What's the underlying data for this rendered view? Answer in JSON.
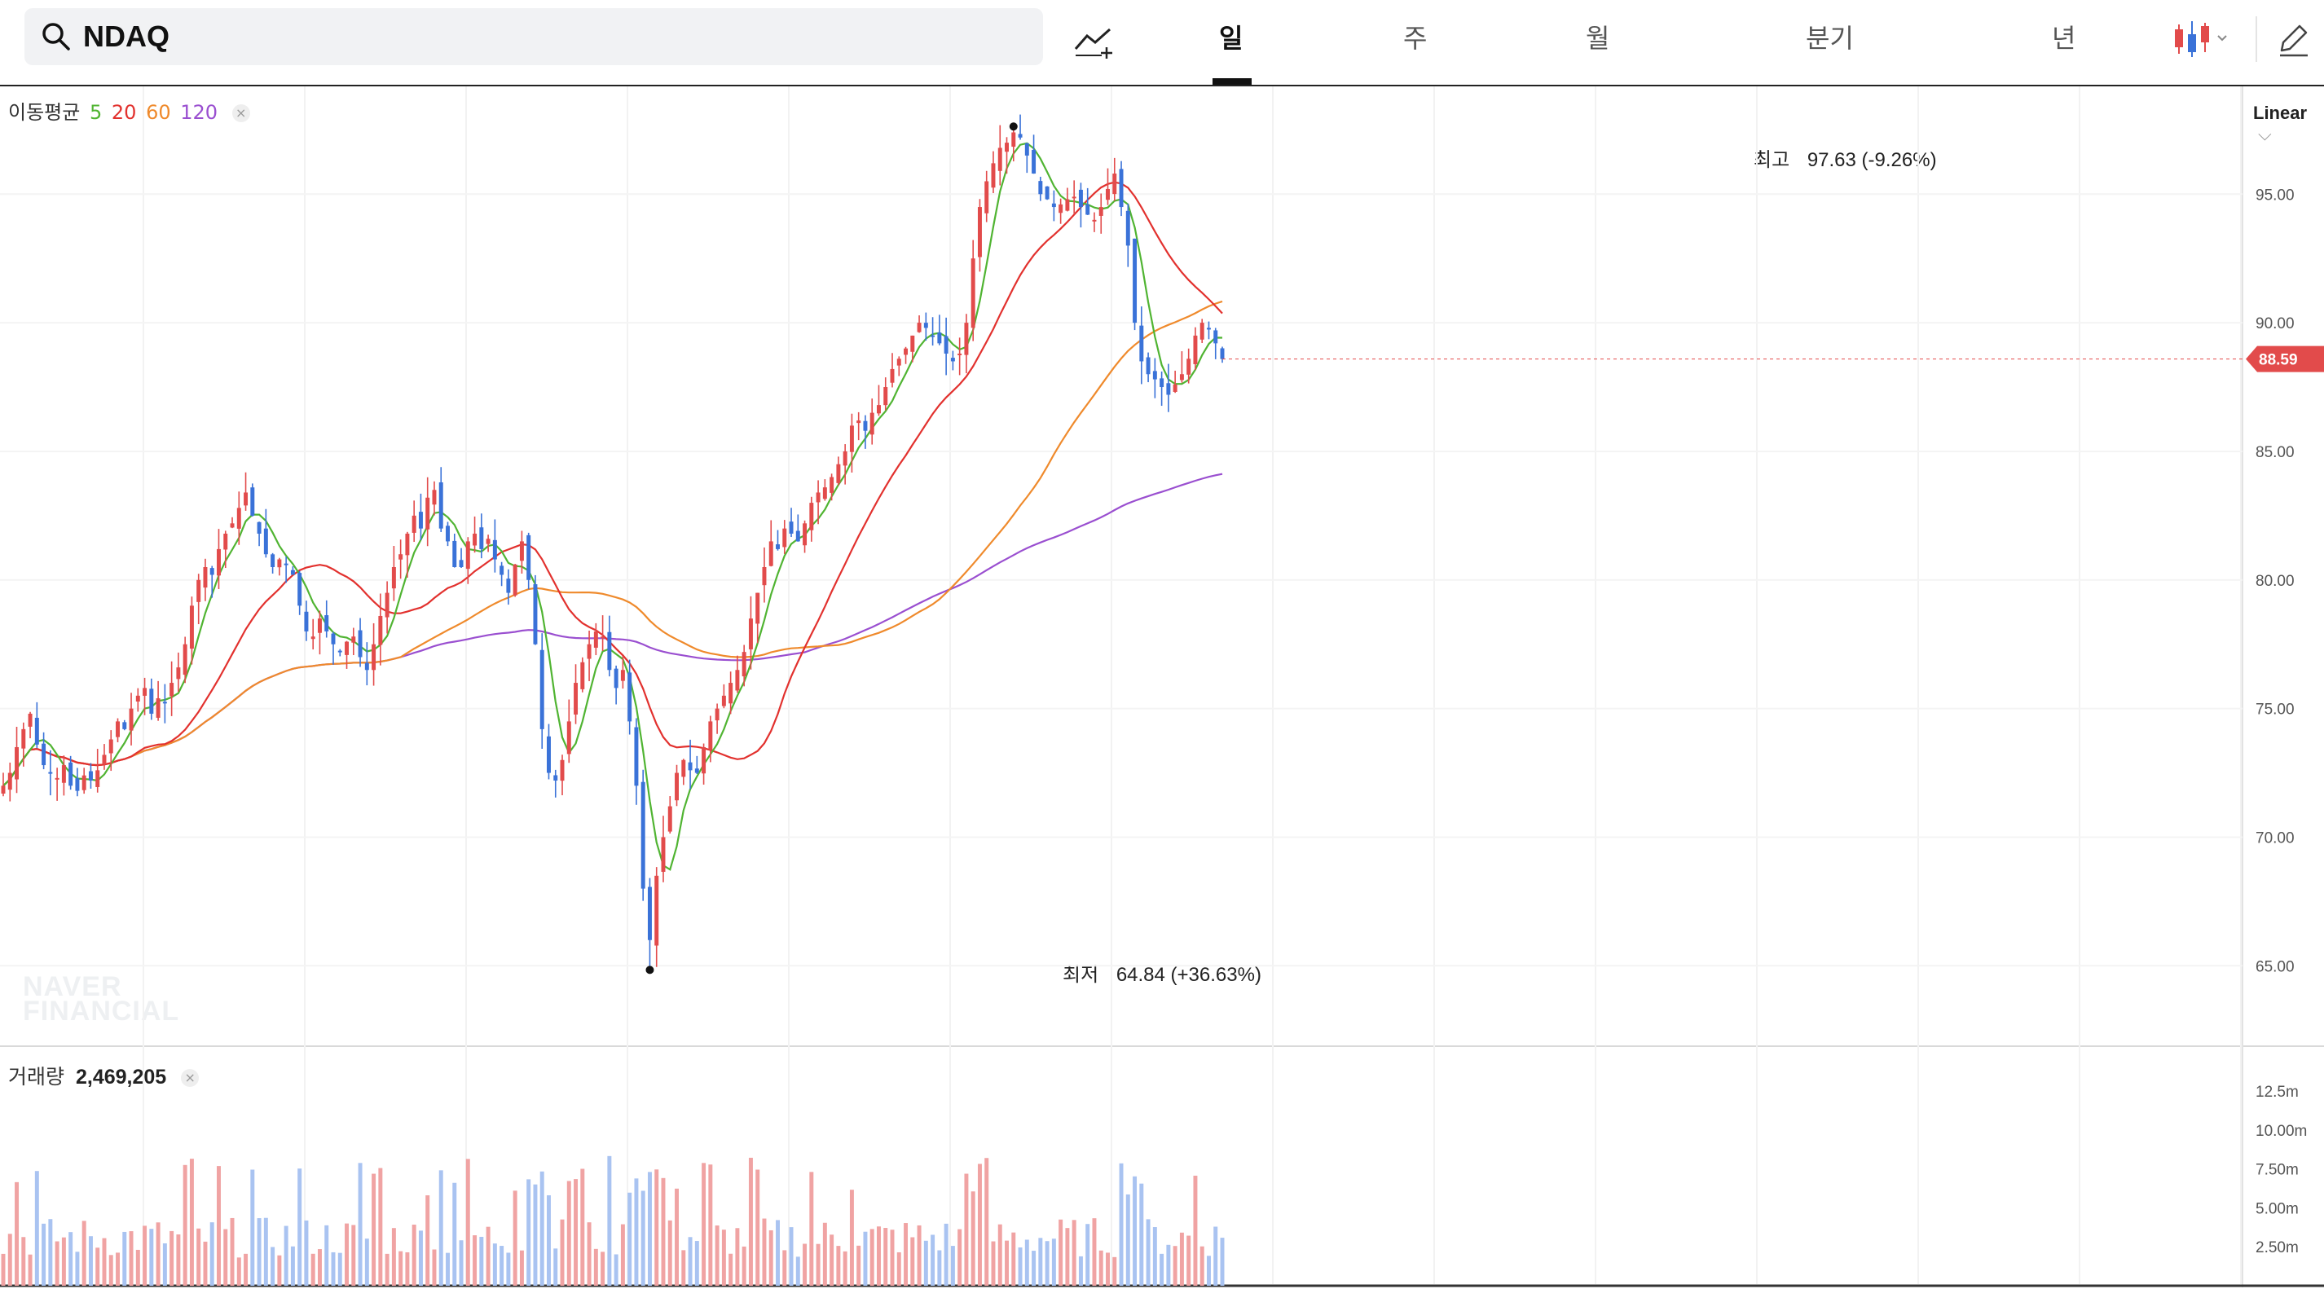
{
  "search": {
    "value": "NDAQ"
  },
  "toolbar": {
    "draw_tool": "chart-draw-icon",
    "tabs": [
      {
        "label": "일",
        "active": true
      },
      {
        "label": "주",
        "active": false
      },
      {
        "label": "월",
        "active": false
      },
      {
        "label": "분기",
        "active": false
      },
      {
        "label": "년",
        "active": false
      }
    ],
    "chart_type_icon": "candlestick-icon",
    "edit_icon": "pencil-icon"
  },
  "indicator": {
    "label": "이동평균",
    "periods": [
      "5",
      "20",
      "60",
      "120"
    ]
  },
  "scale": {
    "label": "Linear"
  },
  "watermark": {
    "line1": "NAVER",
    "line2": "FINANCIAL"
  },
  "annotations": {
    "high_label": "최고",
    "high_value": "97.63 (-9.26%)",
    "low_label": "최저",
    "low_value": "64.84 (+36.63%)"
  },
  "volume": {
    "label": "거래량",
    "value": "2,469,205"
  },
  "colors": {
    "up": "#e24b4b",
    "down": "#3a72d8",
    "ma5": "#50b432",
    "ma20": "#e2312e",
    "ma60": "#ef8a2c",
    "ma120": "#9a4fd0",
    "vol_up": "#f0a3a3",
    "vol_down": "#a9c3f1"
  },
  "chart_data": {
    "type": "candlestick",
    "current_price": "88.59",
    "ylim": [
      62,
      99
    ],
    "y_ticks": [
      "95.00",
      "90.00",
      "85.00",
      "80.00",
      "75.00",
      "70.00",
      "65.00"
    ],
    "volume_ticks": [
      "12.5m",
      "10.00m",
      "7.50m",
      "5.00m",
      "2.50m"
    ],
    "volume_ylim": [
      0,
      13500000
    ],
    "high": 97.63,
    "low": 64.84,
    "close_path": [
      72.0,
      72.5,
      73.5,
      74.2,
      74.8,
      73.6,
      72.8,
      72.5,
      72.3,
      72.8,
      72.0,
      71.8,
      72.4,
      72.2,
      72.6,
      73.2,
      73.8,
      74.5,
      74.2,
      75.0,
      75.5,
      75.8,
      74.8,
      75.4,
      75.2,
      76.0,
      76.6,
      77.5,
      79.0,
      80.0,
      80.5,
      80.2,
      81.2,
      81.8,
      82.2,
      82.8,
      83.4,
      82.5,
      81.8,
      81.0,
      80.5,
      80.8,
      80.6,
      80.2,
      79.0,
      78.0,
      77.8,
      78.5,
      78.0,
      77.5,
      77.2,
      77.6,
      77.8,
      77.0,
      76.5,
      77.5,
      78.6,
      79.5,
      80.5,
      81.0,
      81.8,
      82.5,
      82.0,
      83.2,
      83.5,
      82.0,
      81.5,
      80.5,
      80.5,
      81.5,
      81.8,
      81.2,
      81.6,
      80.8,
      80.2,
      79.5,
      80.6,
      81.5,
      80.0,
      77.5,
      74.2,
      72.5,
      72.2,
      73.0,
      74.5,
      76.0,
      76.8,
      77.5,
      78.0,
      77.8,
      76.5,
      75.8,
      76.5,
      74.5,
      72.0,
      68.0,
      66.0,
      68.5,
      70.0,
      71.2,
      72.5,
      73.0,
      72.6,
      72.5,
      73.5,
      74.5,
      75.0,
      75.5,
      76.0,
      76.5,
      77.2,
      78.5,
      79.5,
      80.5,
      81.5,
      81.2,
      82.0,
      81.8,
      81.5,
      82.2,
      83.0,
      83.4,
      83.6,
      84.0,
      84.5,
      85.0,
      86.0,
      86.2,
      85.8,
      86.5,
      86.8,
      87.5,
      88.2,
      88.6,
      89.0,
      89.5,
      90.0,
      89.8,
      89.5,
      89.2,
      88.8,
      88.5,
      88.8,
      90.0,
      92.5,
      94.5,
      95.5,
      96.2,
      96.8,
      97.0,
      97.4,
      97.2,
      96.5,
      95.8,
      95.0,
      94.8,
      94.5,
      94.6,
      94.8,
      94.9,
      94.5,
      94.2,
      94.0,
      94.5,
      95.2,
      95.8,
      94.5,
      93.0,
      90.0,
      88.5,
      88.0,
      87.8,
      87.5,
      87.2,
      87.6,
      88.0,
      88.6,
      89.5,
      90.0,
      89.8,
      89.2,
      88.59
    ]
  }
}
